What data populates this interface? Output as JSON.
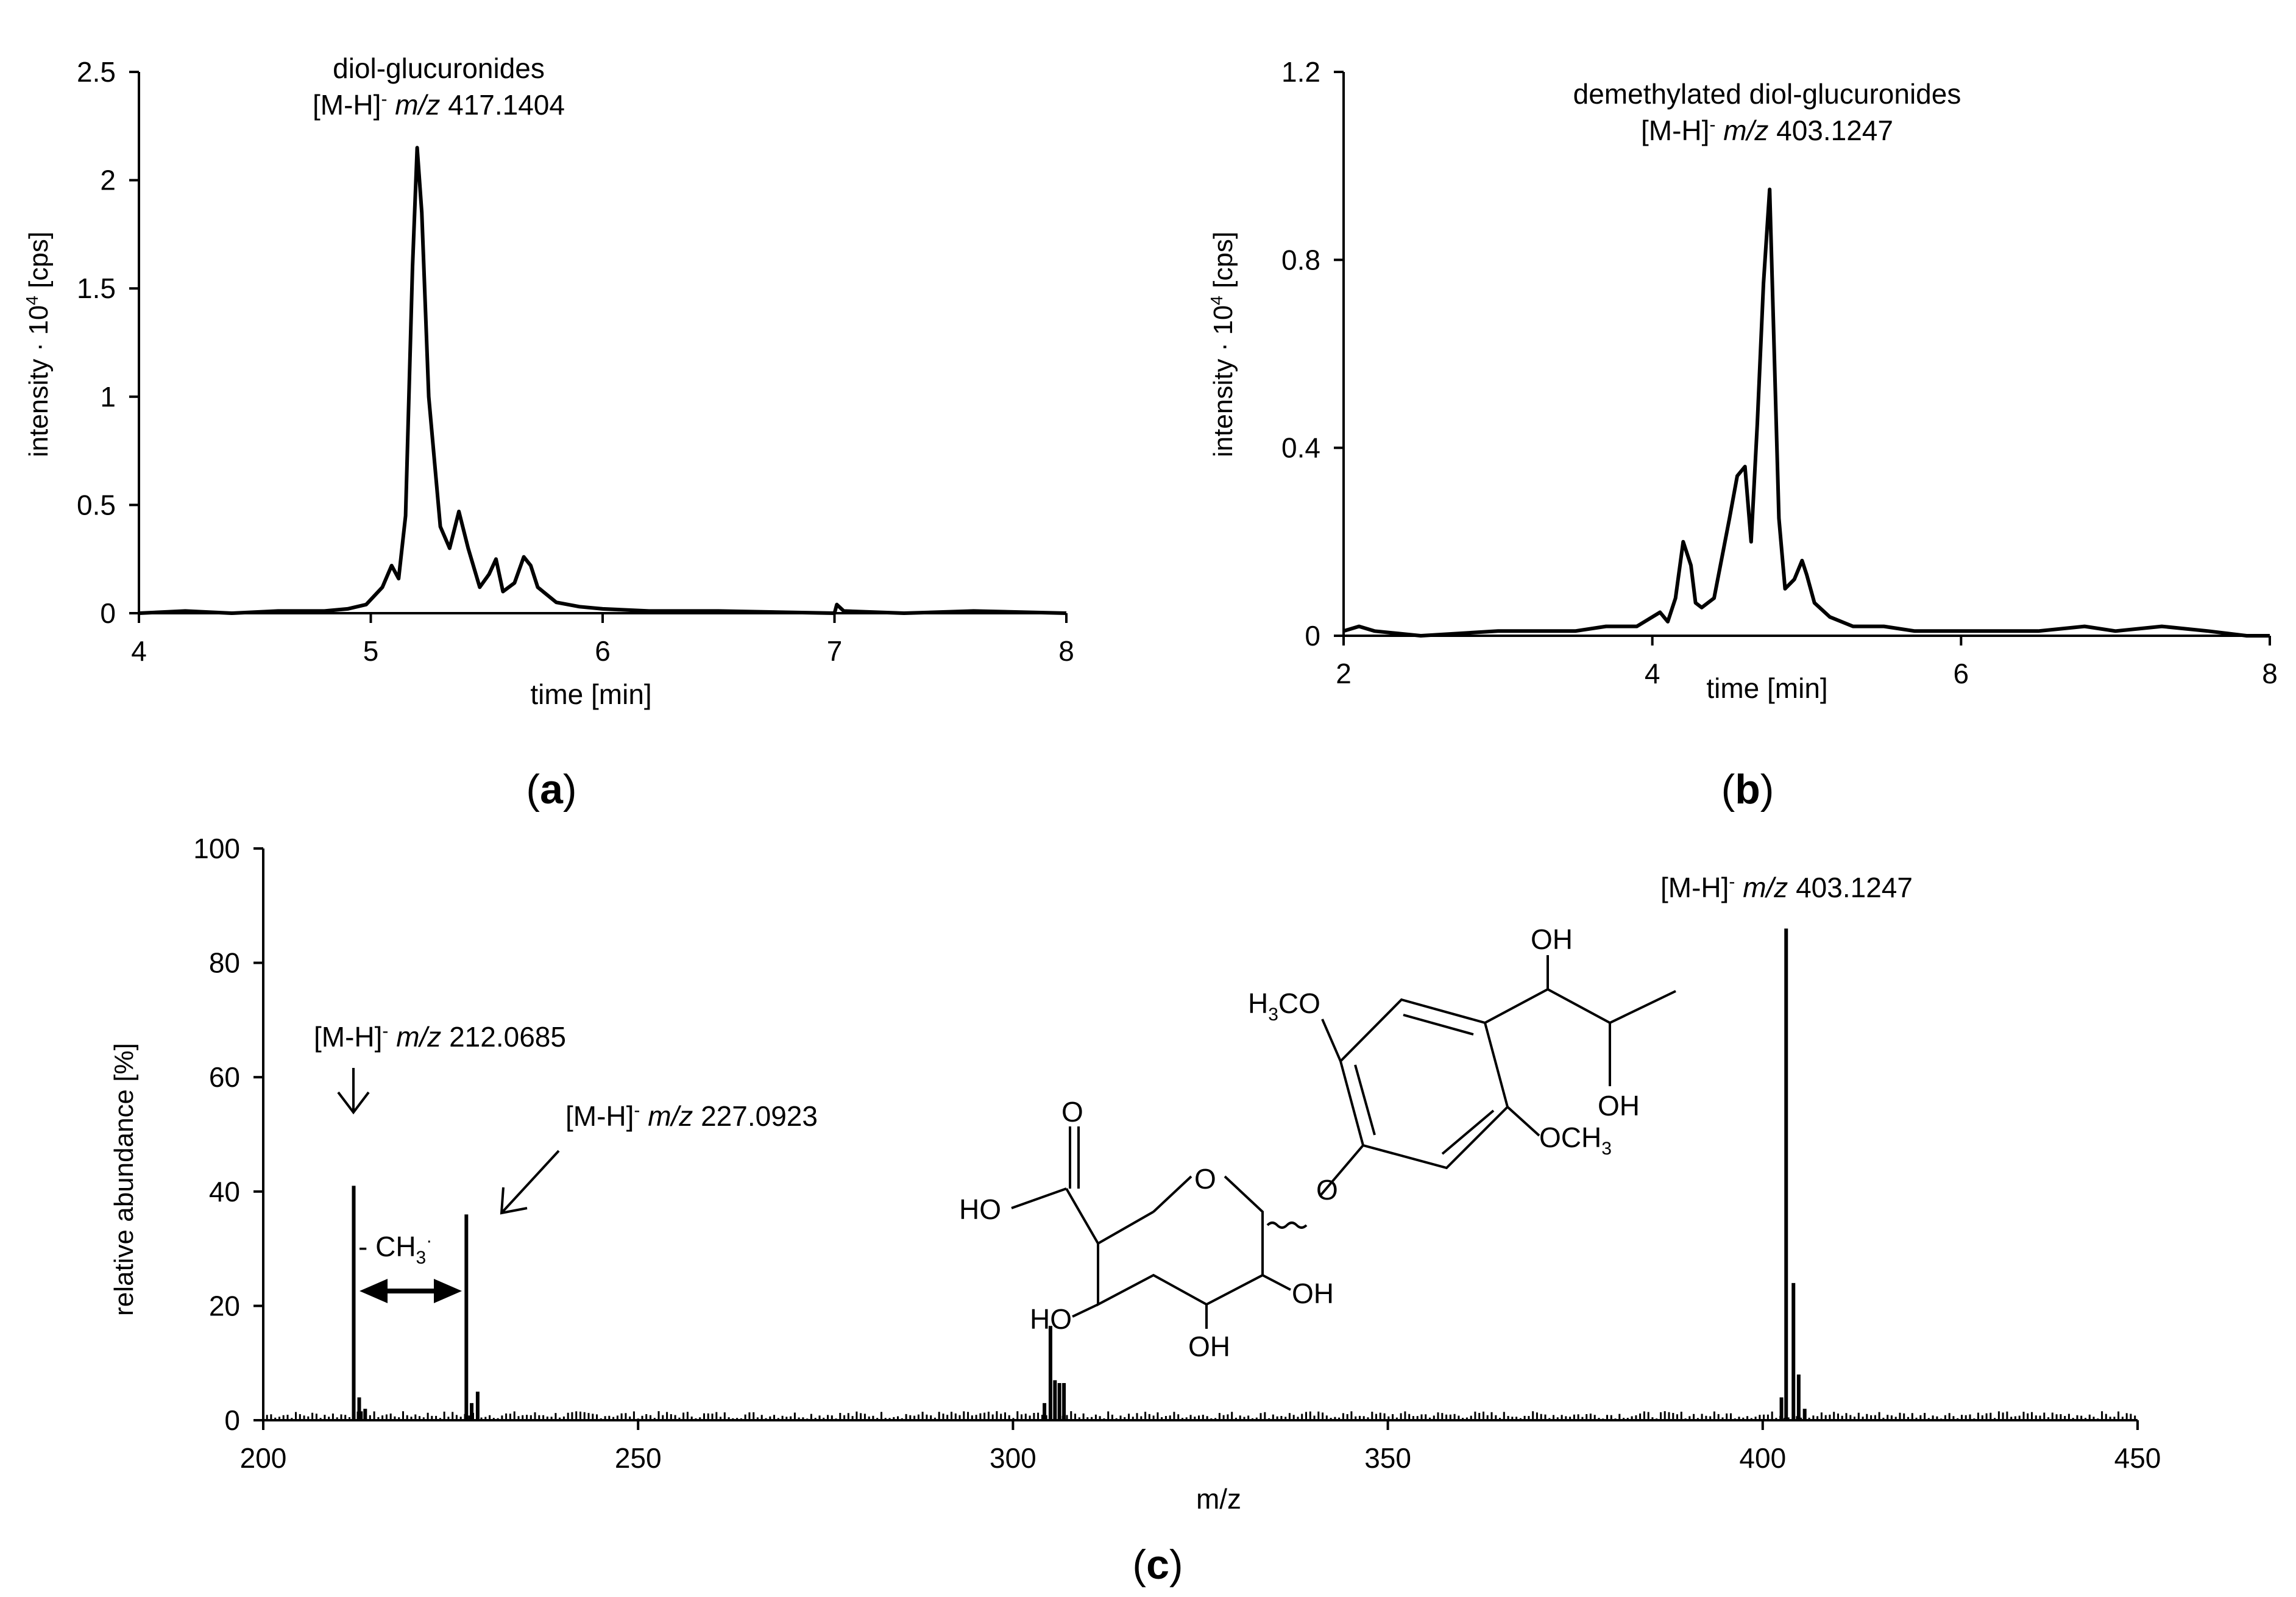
{
  "chart_data": [
    {
      "type": "line",
      "panel": "(a)",
      "panel_letter": "a",
      "title": "diol-glucuronides",
      "subtitle": "[M-H]- m/z 417.1404",
      "ion": {
        "prefix": "[M-H]",
        "charge": "-",
        "mz_label": "m/z",
        "mz_value": "417.1404"
      },
      "xlabel": "time [min]",
      "ylabel": "intensity · 10⁴ [cps]",
      "ylabel_parts": {
        "a": "intensity · 10",
        "sup": "4",
        "b": " [cps]"
      },
      "xlim": [
        4,
        8
      ],
      "ylim": [
        0,
        2.5
      ],
      "xticks": [
        4,
        5,
        6,
        7,
        8
      ],
      "xtick_labels": [
        "4",
        "5",
        "6",
        "7",
        "8"
      ],
      "yticks": [
        0,
        0.5,
        1,
        1.5,
        2,
        2.5
      ],
      "ytick_labels": [
        "0",
        "0.5",
        "1",
        "1.5",
        "2",
        "2.5"
      ],
      "grid": false,
      "series": [
        {
          "x": [
            4.0,
            4.2,
            4.4,
            4.6,
            4.8,
            4.9,
            4.98,
            5.05,
            5.09,
            5.12,
            5.15,
            5.18,
            5.2,
            5.22,
            5.25,
            5.3,
            5.34,
            5.38,
            5.42,
            5.47,
            5.51,
            5.54,
            5.57,
            5.62,
            5.66,
            5.69,
            5.72,
            5.8,
            5.9,
            6.0,
            6.2,
            6.5,
            7.0,
            7.01,
            7.04,
            7.3,
            7.6,
            8.0
          ],
          "y": [
            0.0,
            0.01,
            0.0,
            0.01,
            0.01,
            0.02,
            0.04,
            0.12,
            0.22,
            0.16,
            0.45,
            1.6,
            2.15,
            1.85,
            1.0,
            0.4,
            0.3,
            0.47,
            0.3,
            0.12,
            0.18,
            0.25,
            0.1,
            0.14,
            0.26,
            0.22,
            0.12,
            0.05,
            0.03,
            0.02,
            0.01,
            0.01,
            0.0,
            0.04,
            0.01,
            0.0,
            0.01,
            0.0
          ]
        }
      ]
    },
    {
      "type": "line",
      "panel": "(b)",
      "panel_letter": "b",
      "title": "demethylated diol-glucuronides",
      "subtitle": "[M-H]- m/z 403.1247",
      "ion": {
        "prefix": "[M-H]",
        "charge": "-",
        "mz_label": "m/z",
        "mz_value": "403.1247"
      },
      "xlabel": "time [min]",
      "ylabel": "intensity · 10⁴ [cps]",
      "ylabel_parts": {
        "a": "intensity · 10",
        "sup": "4",
        "b": " [cps]"
      },
      "xlim": [
        2,
        8
      ],
      "ylim": [
        0,
        1.2
      ],
      "xticks": [
        2,
        4,
        6,
        8
      ],
      "xtick_labels": [
        "2",
        "4",
        "6",
        "8"
      ],
      "yticks": [
        0,
        0.4,
        0.8,
        1.2
      ],
      "ytick_labels": [
        "0",
        "0.4",
        "0.8",
        "1.2"
      ],
      "grid": false,
      "series": [
        {
          "x": [
            2.0,
            2.1,
            2.2,
            2.5,
            3.0,
            3.5,
            3.7,
            3.9,
            4.05,
            4.1,
            4.15,
            4.2,
            4.25,
            4.28,
            4.32,
            4.4,
            4.5,
            4.55,
            4.6,
            4.64,
            4.68,
            4.72,
            4.76,
            4.79,
            4.82,
            4.86,
            4.92,
            4.97,
            5.0,
            5.05,
            5.15,
            5.3,
            5.5,
            5.7,
            6.0,
            6.5,
            6.8,
            7.0,
            7.3,
            7.6,
            7.85,
            8.0
          ],
          "y": [
            0.01,
            0.02,
            0.01,
            0.0,
            0.01,
            0.01,
            0.02,
            0.02,
            0.05,
            0.03,
            0.08,
            0.2,
            0.15,
            0.07,
            0.06,
            0.08,
            0.25,
            0.34,
            0.36,
            0.2,
            0.45,
            0.75,
            0.95,
            0.6,
            0.25,
            0.1,
            0.12,
            0.16,
            0.13,
            0.07,
            0.04,
            0.02,
            0.02,
            0.01,
            0.01,
            0.01,
            0.02,
            0.01,
            0.02,
            0.01,
            0.0,
            0.0
          ]
        }
      ]
    },
    {
      "type": "bar",
      "panel": "(c)",
      "panel_letter": "c",
      "xlabel": "m/z",
      "ylabel": "relative abundance [%]",
      "xlim": [
        200,
        450
      ],
      "ylim": [
        0,
        100
      ],
      "xticks": [
        200,
        250,
        300,
        350,
        400,
        450
      ],
      "xtick_labels": [
        "200",
        "250",
        "300",
        "350",
        "400",
        "450"
      ],
      "yticks": [
        0,
        20,
        40,
        60,
        80,
        100
      ],
      "ytick_labels": [
        "0",
        "20",
        "40",
        "60",
        "80",
        "100"
      ],
      "grid": false,
      "peaks": {
        "mz": [
          212.0685,
          212.8,
          213.6,
          227.0923,
          227.8,
          228.6,
          304.2,
          305.0,
          305.6,
          306.2,
          306.8,
          402.5,
          403.1247,
          404.1,
          404.8,
          405.6
        ],
        "abundance": [
          41,
          4,
          2,
          36,
          3,
          5,
          3,
          16.5,
          7,
          6.5,
          6.5,
          4,
          86,
          24,
          8,
          2
        ]
      },
      "annotations": [
        {
          "prefix": "[M-H]",
          "charge": "-",
          "mz_label": "m/z",
          "mz_value": "212.0685"
        },
        {
          "prefix": "[M-H]",
          "charge": "-",
          "mz_label": "m/z",
          "mz_value": "227.0923"
        },
        {
          "prefix": "[M-H]",
          "charge": "-",
          "mz_label": "m/z",
          "mz_value": "403.1247"
        }
      ],
      "loss_label": {
        "text": "- CH",
        "sub": "3",
        "sup": "·"
      },
      "structure_labels": {
        "oh_top": "OH",
        "h3co": "H",
        "h3co_sub": "3",
        "h3co_rest": "CO",
        "carbonyl_o": "O",
        "ho_acid": "HO",
        "ring_o": "O",
        "ether_o": "O",
        "oh_side": "OH",
        "och3": "OCH",
        "och3_sub": "3",
        "ho_ring": "HO",
        "oh_ring_right": "OH",
        "oh_ring_bottom": "OH"
      }
    }
  ]
}
